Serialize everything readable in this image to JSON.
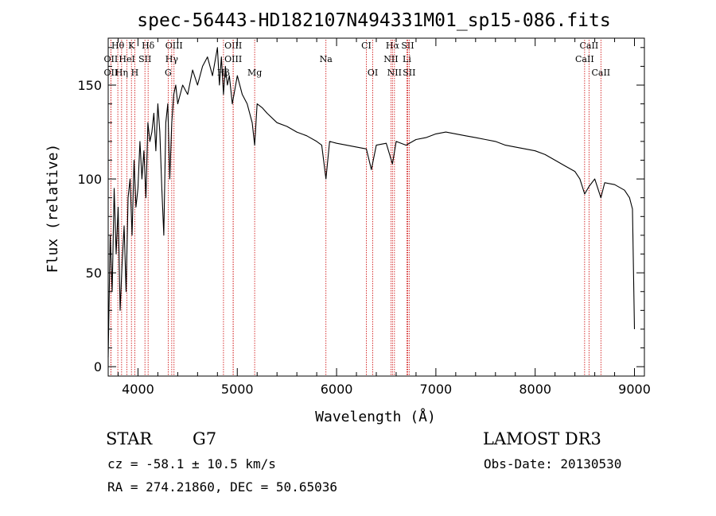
{
  "chart_data": {
    "type": "line",
    "title": "spec-56443-HD182107N494331M01_sp15-086.fits",
    "xlabel": "Wavelength (Å)",
    "ylabel": "Flux (relative)",
    "xlim": [
      3700,
      9100
    ],
    "ylim": [
      -5,
      175
    ],
    "x_ticks": [
      4000,
      5000,
      6000,
      7000,
      8000,
      9000
    ],
    "y_ticks": [
      0,
      50,
      100,
      150
    ],
    "series": [
      {
        "x": [
          3700,
          3720,
          3740,
          3760,
          3780,
          3800,
          3820,
          3840,
          3860,
          3880,
          3900,
          3920,
          3940,
          3960,
          3980,
          4000,
          4020,
          4040,
          4060,
          4080,
          4100,
          4120,
          4140,
          4160,
          4180,
          4200,
          4220,
          4240,
          4260,
          4280,
          4300,
          4320,
          4340,
          4360,
          4380,
          4400,
          4450,
          4500,
          4550,
          4600,
          4650,
          4700,
          4750,
          4800,
          4820,
          4840,
          4861,
          4880,
          4900,
          4920,
          4950,
          5000,
          5050,
          5100,
          5150,
          5175,
          5200,
          5250,
          5300,
          5400,
          5500,
          5600,
          5700,
          5800,
          5850,
          5893,
          5930,
          6000,
          6100,
          6200,
          6300,
          6350,
          6400,
          6500,
          6563,
          6600,
          6700,
          6800,
          6900,
          7000,
          7100,
          7200,
          7300,
          7400,
          7500,
          7600,
          7700,
          7800,
          7900,
          8000,
          8100,
          8200,
          8300,
          8400,
          8450,
          8498,
          8542,
          8600,
          8662,
          8700,
          8800,
          8900,
          8950,
          8980,
          9000
        ],
        "y": [
          5,
          70,
          40,
          95,
          60,
          85,
          30,
          55,
          75,
          40,
          90,
          100,
          70,
          110,
          85,
          95,
          120,
          100,
          115,
          90,
          130,
          120,
          125,
          135,
          115,
          140,
          125,
          95,
          70,
          130,
          140,
          100,
          130,
          145,
          150,
          140,
          150,
          145,
          158,
          150,
          160,
          165,
          155,
          170,
          150,
          165,
          145,
          160,
          150,
          155,
          140,
          155,
          145,
          140,
          130,
          118,
          140,
          138,
          135,
          130,
          128,
          125,
          123,
          120,
          118,
          100,
          120,
          119,
          118,
          117,
          116,
          105,
          118,
          119,
          108,
          120,
          118,
          121,
          122,
          124,
          125,
          124,
          123,
          122,
          121,
          120,
          118,
          117,
          116,
          115,
          113,
          110,
          107,
          104,
          100,
          92,
          96,
          100,
          90,
          98,
          97,
          94,
          90,
          84,
          20
        ]
      }
    ],
    "lines": [
      {
        "label": "Hθ",
        "x": 3797,
        "row": 0
      },
      {
        "label": "K",
        "x": 3934,
        "row": 0
      },
      {
        "label": "Hδ",
        "x": 4102,
        "row": 0
      },
      {
        "label": "OIII",
        "x": 4363,
        "row": 0
      },
      {
        "label": "OIII",
        "x": 4959,
        "row": 0
      },
      {
        "label": "CI",
        "x": 6300,
        "row": 0
      },
      {
        "label": "Hα",
        "x": 6563,
        "row": 0
      },
      {
        "label": "SII",
        "x": 6716,
        "row": 0
      },
      {
        "label": "CaII",
        "x": 8542,
        "row": 0
      },
      {
        "label": "OII",
        "x": 3727,
        "row": 1
      },
      {
        "label": "HeI",
        "x": 3889,
        "row": 1
      },
      {
        "label": "SII",
        "x": 4070,
        "row": 1
      },
      {
        "label": "Hγ",
        "x": 4340,
        "row": 1
      },
      {
        "label": "OIII",
        "x": 4959,
        "row": 1
      },
      {
        "label": "NII",
        "x": 6548,
        "row": 1
      },
      {
        "label": "Li",
        "x": 6708,
        "row": 1
      },
      {
        "label": "CaII",
        "x": 8498,
        "row": 1
      },
      {
        "label": "OII",
        "x": 3727,
        "row": 2
      },
      {
        "label": "Hη",
        "x": 3835,
        "row": 2
      },
      {
        "label": "H",
        "x": 3968,
        "row": 2
      },
      {
        "label": "G",
        "x": 4304,
        "row": 2
      },
      {
        "label": "Hβ",
        "x": 4861,
        "row": 2
      },
      {
        "label": "Mg",
        "x": 5175,
        "row": 2
      },
      {
        "label": "Na",
        "x": 5893,
        "row": 1
      },
      {
        "label": "OI",
        "x": 6364,
        "row": 2
      },
      {
        "label": "NII",
        "x": 6583,
        "row": 2
      },
      {
        "label": "SII",
        "x": 6731,
        "row": 2
      },
      {
        "label": "CaII",
        "x": 8662,
        "row": 2
      }
    ],
    "colors": {
      "spectrum": "#000000",
      "line_markers": "#cc0000"
    }
  },
  "footer": {
    "object_class": "STAR",
    "subclass": "G7",
    "redshift": "cz = -58.1 ± 10.5 km/s",
    "coords": "RA = 274.21860, DEC =  50.65036",
    "survey": "LAMOST DR3",
    "obs_date": "Obs-Date: 20130530"
  }
}
